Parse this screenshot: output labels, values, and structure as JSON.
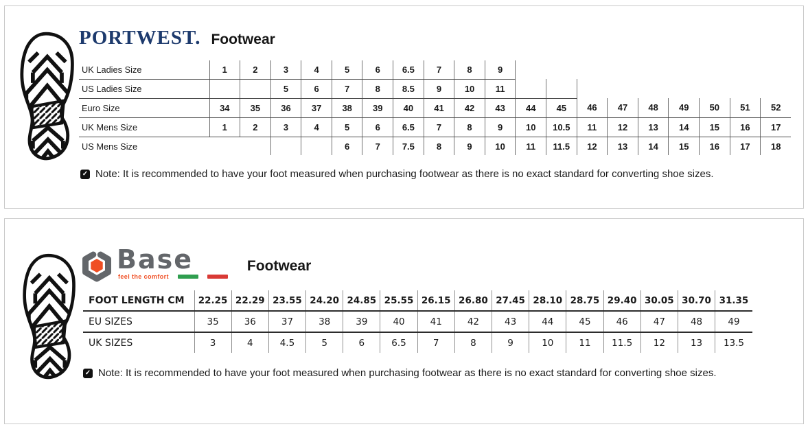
{
  "colors": {
    "portwest-navy": "#1d3a6d",
    "base-gray": "#63666a",
    "base-orange": "#f04e23",
    "flag-green": "#2f9e4f",
    "flag-red": "#d93a35",
    "note-icon-bg": "#111111"
  },
  "portwest": {
    "brand": "PORTWEST.",
    "title": "Footwear",
    "note_icon": "✓",
    "note": "Note: It is recommended to have your foot measured when purchasing footwear as there is no exact standard for converting shoe sizes.",
    "table": {
      "rows": [
        {
          "label": "UK Ladies Size",
          "bottom": true,
          "close_right": true,
          "cells": [
            "1",
            "2",
            "3",
            "4",
            "5",
            "6",
            "6.5",
            "7",
            "8",
            "9",
            null,
            null,
            null,
            null,
            null,
            null,
            null,
            null,
            null
          ]
        },
        {
          "label": "US Ladies Size",
          "bottom": true,
          "close_right": true,
          "cells": [
            "",
            "",
            "5",
            "6",
            "7",
            "8",
            "8.5",
            "9",
            "10",
            "11",
            "",
            "",
            null,
            null,
            null,
            null,
            null,
            null,
            null
          ]
        },
        {
          "label": "Euro Size",
          "bottom": true,
          "close_right": false,
          "cells": [
            "34",
            "35",
            "36",
            "37",
            "38",
            "39",
            "40",
            "41",
            "42",
            "43",
            "44",
            "45",
            "46",
            "47",
            "48",
            "49",
            "50",
            "51",
            "52"
          ]
        },
        {
          "label": "UK Mens Size",
          "bottom": true,
          "close_right": false,
          "cells": [
            "1",
            "2",
            "3",
            "4",
            "5",
            "6",
            "6.5",
            "7",
            "8",
            "9",
            "10",
            "10.5",
            "11",
            "12",
            "13",
            "14",
            "15",
            "16",
            "17"
          ]
        },
        {
          "label": "US Mens Size",
          "bottom": false,
          "close_right": false,
          "cells": [
            null,
            null,
            "",
            "",
            "6",
            "7",
            "7.5",
            "8",
            "9",
            "10",
            "11",
            "11.5",
            "12",
            "13",
            "14",
            "15",
            "16",
            "17",
            "18"
          ]
        }
      ]
    }
  },
  "base": {
    "brand": "Base",
    "tagline": "feel the comfort",
    "title": "Footwear",
    "note_icon": "✓",
    "note": "Note: It is recommended to have your foot measured when purchasing footwear as there is no exact standard for converting shoe sizes.",
    "table": {
      "rows": [
        {
          "label": "FOOT LENGTH CM",
          "bold": true,
          "bottom": true,
          "cells": [
            "22.25",
            "22.29",
            "23.55",
            "24.20",
            "24.85",
            "25.55",
            "26.15",
            "26.80",
            "27.45",
            "28.10",
            "28.75",
            "29.40",
            "30.05",
            "30.70",
            "31.35"
          ]
        },
        {
          "label": "EU SIZES",
          "bold": false,
          "bottom": true,
          "cells": [
            "35",
            "36",
            "37",
            "38",
            "39",
            "40",
            "41",
            "42",
            "43",
            "44",
            "45",
            "46",
            "47",
            "48",
            "49"
          ]
        },
        {
          "label": "UK SIZES",
          "bold": false,
          "bottom": false,
          "cells": [
            "3",
            "4",
            "4.5",
            "5",
            "6",
            "6.5",
            "7",
            "8",
            "9",
            "10",
            "11",
            "11.5",
            "12",
            "13",
            "13.5"
          ]
        }
      ]
    }
  }
}
